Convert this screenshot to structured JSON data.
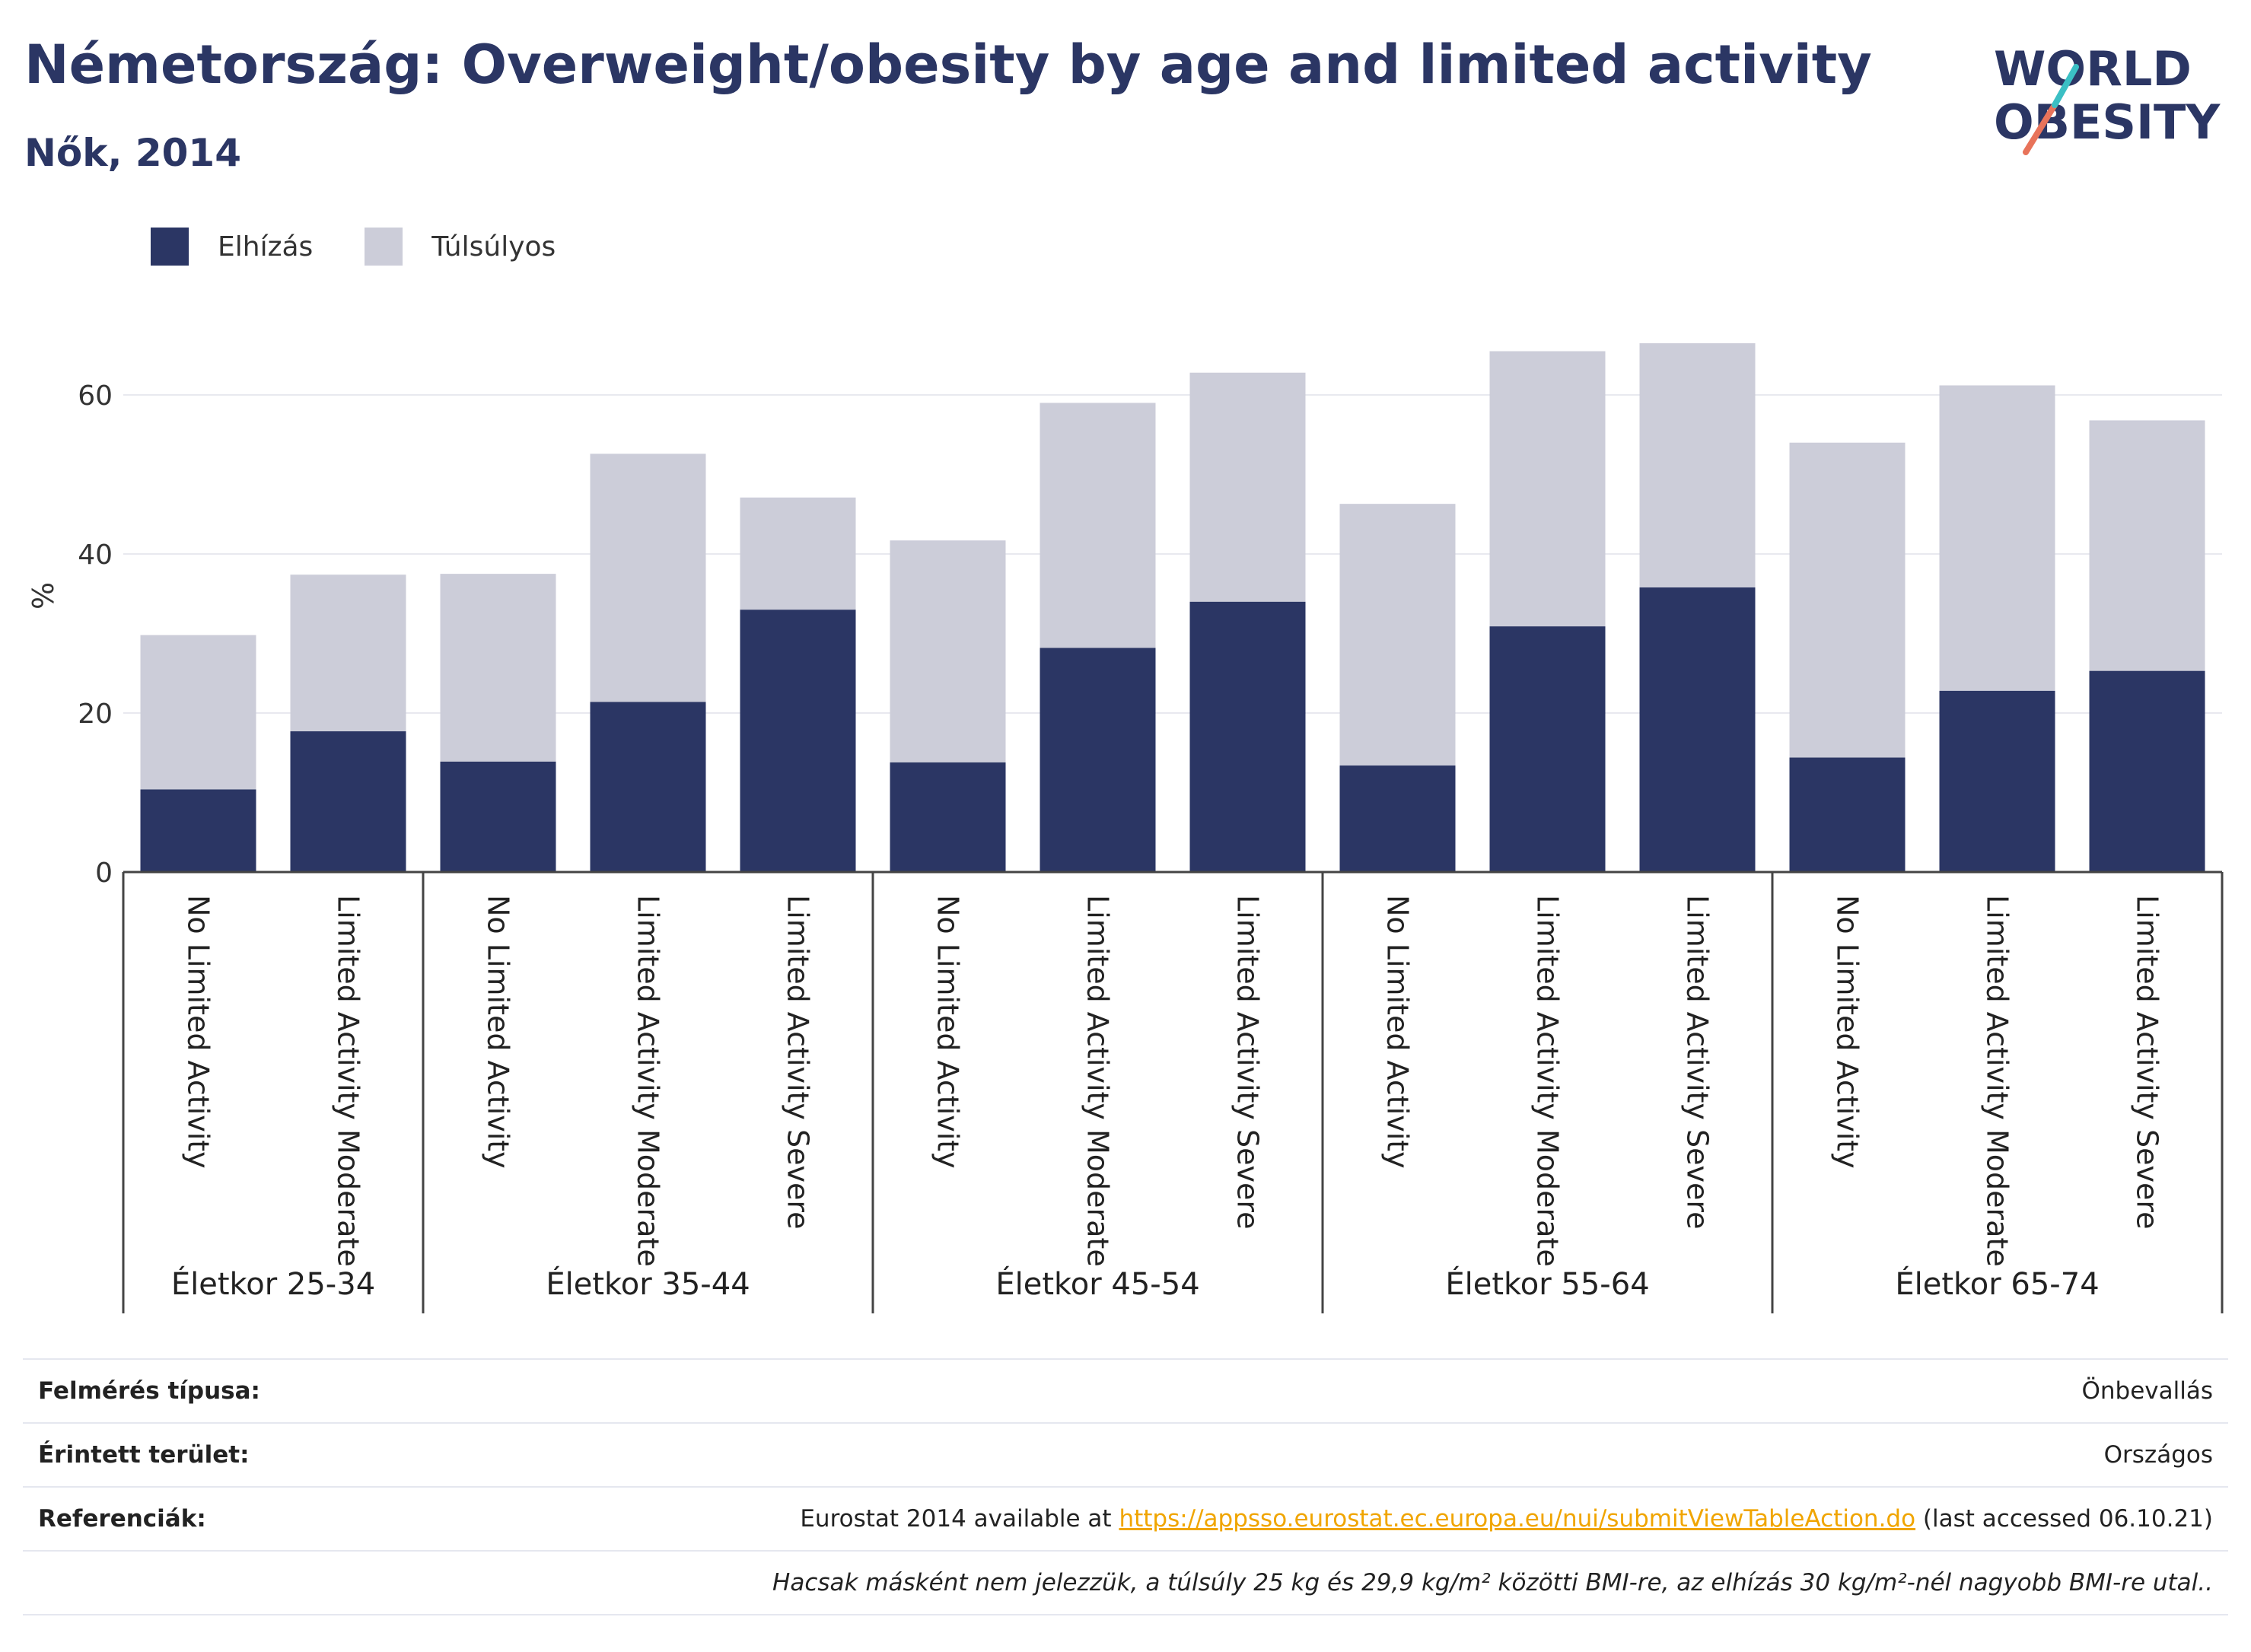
{
  "header": {
    "title": "Németország: Overweight/obesity by age and limited activity",
    "subtitle": "Nők, 2014",
    "logo_line1": "WORLD",
    "logo_line2": "OBESITY"
  },
  "legend": {
    "items": [
      {
        "label": "Elhízás",
        "color": "#2b3664"
      },
      {
        "label": "Túlsúlyos",
        "color": "#cccdd9"
      }
    ]
  },
  "chart_data": {
    "type": "bar",
    "stacked": true,
    "ylabel": "%",
    "ylim": [
      0,
      70
    ],
    "yticks": [
      0,
      20,
      40,
      60
    ],
    "grid": true,
    "legend_position": "top-left",
    "groups": [
      {
        "label": "Életkor 25-34",
        "categories": [
          "No Limited Activity",
          "Limited Activity Moderate"
        ]
      },
      {
        "label": "Életkor 35-44",
        "categories": [
          "No Limited Activity",
          "Limited Activity Moderate",
          "Limited Activity Severe"
        ]
      },
      {
        "label": "Életkor 45-54",
        "categories": [
          "No Limited Activity",
          "Limited Activity Moderate",
          "Limited Activity Severe"
        ]
      },
      {
        "label": "Életkor 55-64",
        "categories": [
          "No Limited Activity",
          "Limited Activity Moderate",
          "Limited Activity Severe"
        ]
      },
      {
        "label": "Életkor 65-74",
        "categories": [
          "No Limited Activity",
          "Limited Activity Moderate",
          "Limited Activity Severe"
        ]
      }
    ],
    "series": [
      {
        "name": "Elhízás",
        "color": "#2b3664",
        "values": [
          10.4,
          17.7,
          13.9,
          21.4,
          33.0,
          13.8,
          28.2,
          34.0,
          13.4,
          30.9,
          35.8,
          14.4,
          22.8,
          25.3
        ]
      },
      {
        "name": "Túlsúlyos",
        "color": "#cccdd9",
        "values": [
          19.4,
          19.7,
          23.6,
          31.2,
          14.1,
          27.9,
          30.8,
          28.8,
          32.9,
          34.6,
          30.7,
          39.6,
          38.4,
          31.5
        ]
      }
    ]
  },
  "footer": {
    "rows": [
      {
        "label": "Felmérés típusa:",
        "value": "Önbevallás"
      },
      {
        "label": "Érintett terület:",
        "value": "Országos"
      }
    ],
    "ref_label": "Referenciák:",
    "ref_prefix": "Eurostat 2014 available at ",
    "ref_link": "https://appsso.eurostat.ec.europa.eu/nui/submitViewTableAction.do",
    "ref_suffix": " (last accessed 06.10.21)",
    "note": "Hacsak másként nem jelezzük, a túlsúly 25 kg és 29,9 kg/m² közötti BMI-re, az elhízás 30 kg/m²-nél nagyobb BMI-re utal.."
  }
}
